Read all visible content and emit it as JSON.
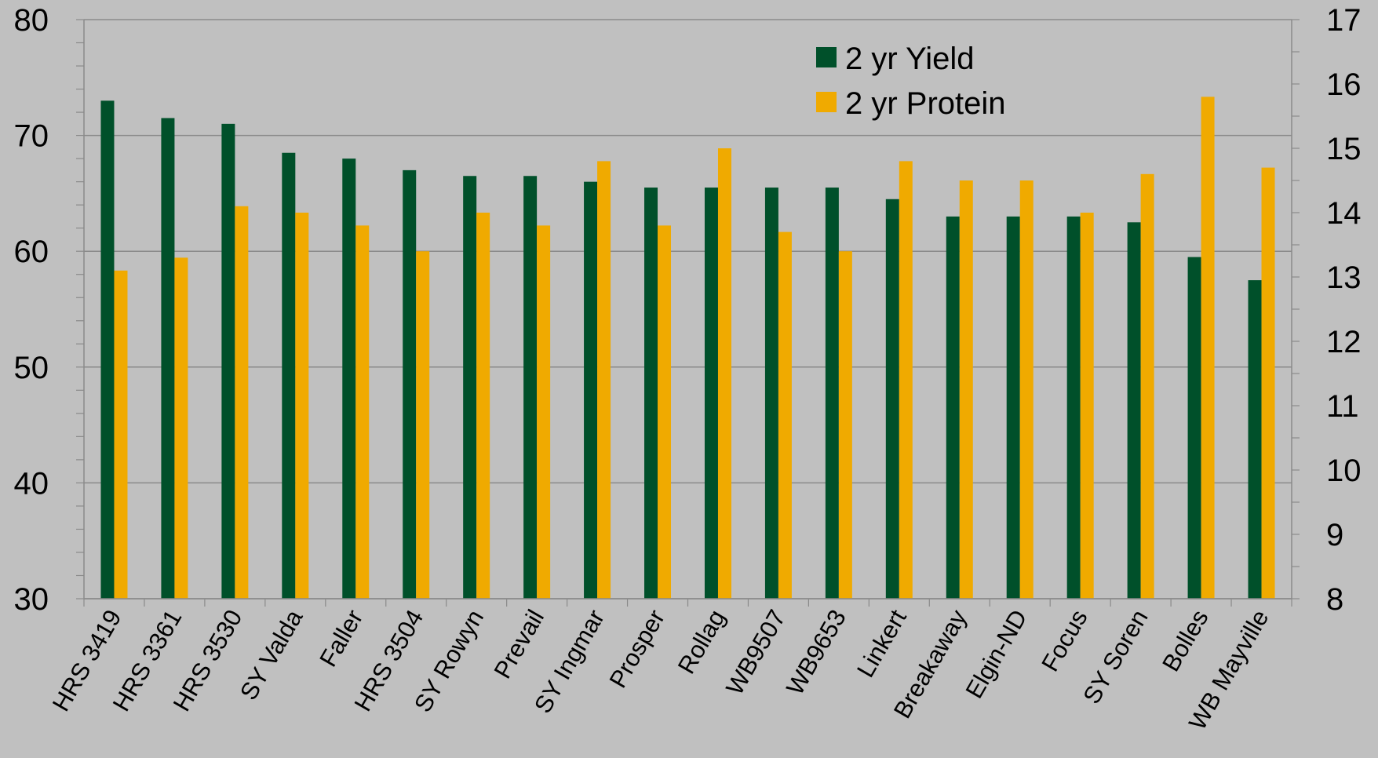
{
  "chart_data": {
    "type": "bar",
    "title": "",
    "xlabel": "",
    "ylabel": "",
    "y2label": "",
    "categories": [
      "HRS 3419",
      "HRS 3361",
      "HRS 3530",
      "SY Valda",
      "Faller",
      "HRS 3504",
      "SY Rowyn",
      "Prevail",
      "SY Ingmar",
      "Prosper",
      "Rollag",
      "WB9507",
      "WB9653",
      "Linkert",
      "Breakaway",
      "Elgin-ND",
      "Focus",
      "SY Soren",
      "Bolles",
      "WB Mayville"
    ],
    "series": [
      {
        "name": "2 yr Yield",
        "axis": "left",
        "color": "#00502a",
        "values": [
          73,
          71.5,
          71,
          68.5,
          68,
          67,
          66.5,
          66.5,
          66,
          65.5,
          65.5,
          65.5,
          65.5,
          64.5,
          63,
          63,
          63,
          62.5,
          59.5,
          57.5
        ]
      },
      {
        "name": "2 yr Protein",
        "axis": "right",
        "color": "#f0aa00",
        "values": [
          13.1,
          13.3,
          14.1,
          14.0,
          13.8,
          13.4,
          14.0,
          13.8,
          14.8,
          13.8,
          15.0,
          13.7,
          13.4,
          14.8,
          14.5,
          14.5,
          14.0,
          14.6,
          15.8,
          14.7
        ]
      }
    ],
    "ylim": [
      30,
      80
    ],
    "y_ticks": [
      "30",
      "40",
      "50",
      "60",
      "70",
      "80"
    ],
    "y2lim": [
      8,
      17
    ],
    "y2_ticks": [
      "8",
      "9",
      "10",
      "11",
      "12",
      "13",
      "14",
      "15",
      "16",
      "17"
    ],
    "grid": true,
    "legend_position": "top-right"
  }
}
